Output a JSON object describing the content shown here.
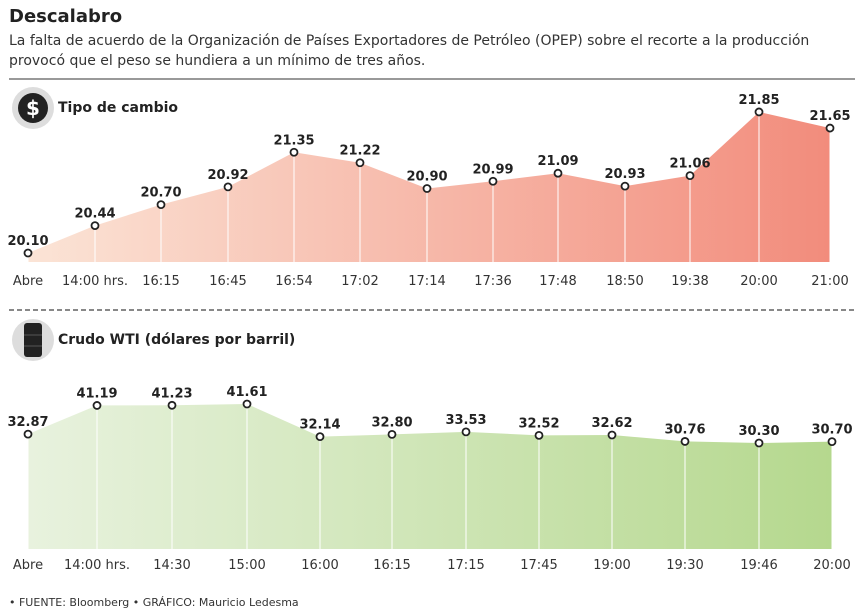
{
  "header": {
    "title": "Descalabro",
    "subtitle": "La falta de acuerdo de la Organización de Países Exportadores de Petróleo (OPEP) sobre el recorte a la producción provocó que el peso se hundiera a un mínimo de tres años."
  },
  "footer": "• FUENTE: Bloomberg • GRÁFICO: Mauricio Ledesma",
  "chart_data": [
    {
      "type": "area",
      "title": "Tipo de cambio",
      "icon": "dollar-icon",
      "colors": [
        "#fbe4d6",
        "#f28c7c"
      ],
      "categories": [
        "Abre",
        "14:00 hrs.",
        "16:15",
        "16:45",
        "16:54",
        "17:02",
        "17:14",
        "17:36",
        "17:48",
        "18:50",
        "19:38",
        "20:00",
        "21:00"
      ],
      "values": [
        20.1,
        20.44,
        20.7,
        20.92,
        21.35,
        21.22,
        20.9,
        20.99,
        21.09,
        20.93,
        21.06,
        21.85,
        21.65
      ]
    },
    {
      "type": "area",
      "title": "Crudo WTI (dólares por barril)",
      "icon": "oil-barrel-icon",
      "colors": [
        "#e8f2de",
        "#b5d88e"
      ],
      "categories": [
        "Abre",
        "14:00 hrs.",
        "14:30",
        "15:00",
        "16:00",
        "16:15",
        "17:15",
        "17:45",
        "19:00",
        "19:30",
        "19:46",
        "20:00"
      ],
      "values": [
        32.87,
        41.19,
        41.23,
        41.61,
        32.14,
        32.8,
        33.53,
        32.52,
        32.62,
        30.76,
        30.3,
        30.7
      ]
    }
  ]
}
